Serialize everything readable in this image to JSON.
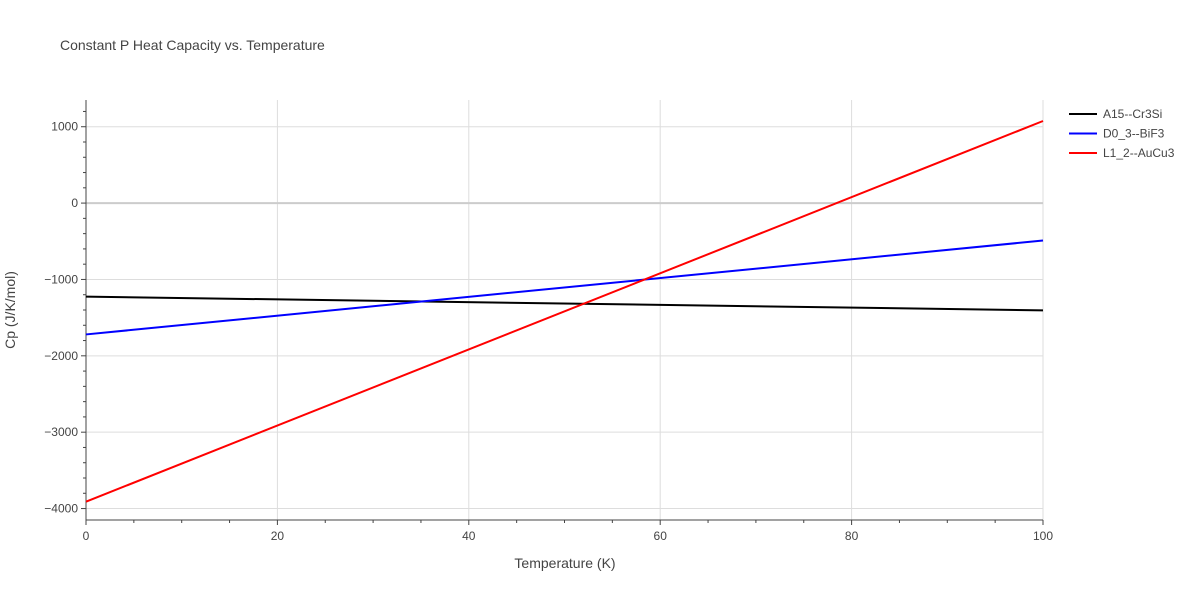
{
  "chart_data": {
    "type": "line",
    "title": "Constant P Heat Capacity vs. Temperature",
    "xlabel": "Temperature (K)",
    "ylabel": "Cp (J/K/mol)",
    "xlim": [
      0,
      100
    ],
    "ylim": [
      -4150,
      1350
    ],
    "x_ticks": [
      0,
      20,
      40,
      60,
      80,
      100
    ],
    "x_tick_labels": [
      "0",
      "20",
      "40",
      "60",
      "80",
      "100"
    ],
    "y_ticks": [
      -4000,
      -3000,
      -2000,
      -1000,
      0,
      1000
    ],
    "y_tick_labels": [
      "−4000",
      "−3000",
      "−2000",
      "−1000",
      "0",
      "1000"
    ],
    "grid": true,
    "legend_position": "top-right",
    "series": [
      {
        "name": "A15--Cr3Si",
        "color": "#000000",
        "x": [
          0,
          100
        ],
        "y": [
          -1225,
          -1405
        ]
      },
      {
        "name": "D0_3--BiF3",
        "color": "#0000ff",
        "x": [
          0,
          100
        ],
        "y": [
          -1720,
          -490
        ]
      },
      {
        "name": "L1_2--AuCu3",
        "color": "#ff0000",
        "x": [
          0,
          100
        ],
        "y": [
          -3910,
          1075
        ]
      }
    ]
  }
}
